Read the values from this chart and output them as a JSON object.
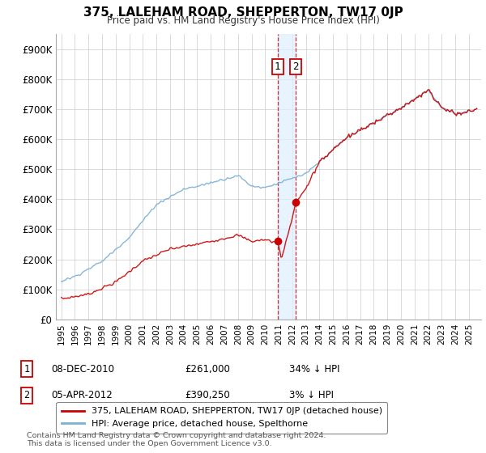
{
  "title": "375, LALEHAM ROAD, SHEPPERTON, TW17 0JP",
  "subtitle": "Price paid vs. HM Land Registry's House Price Index (HPI)",
  "legend_line1": "375, LALEHAM ROAD, SHEPPERTON, TW17 0JP (detached house)",
  "legend_line2": "HPI: Average price, detached house, Spelthorne",
  "annotation1_label": "1",
  "annotation1_date": "08-DEC-2010",
  "annotation1_price": "£261,000",
  "annotation1_hpi": "34% ↓ HPI",
  "annotation2_label": "2",
  "annotation2_date": "05-APR-2012",
  "annotation2_price": "£390,250",
  "annotation2_hpi": "3% ↓ HPI",
  "footnote": "Contains HM Land Registry data © Crown copyright and database right 2024.\nThis data is licensed under the Open Government Licence v3.0.",
  "hpi_color": "#7ab0d4",
  "price_color": "#cc0000",
  "vline_color": "#cc0000",
  "vband_color": "#ddeeff",
  "background_color": "#ffffff",
  "grid_color": "#cccccc",
  "ylim": [
    0,
    950000
  ],
  "yticks": [
    0,
    100000,
    200000,
    300000,
    400000,
    500000,
    600000,
    700000,
    800000,
    900000
  ],
  "ytick_labels": [
    "£0",
    "£100K",
    "£200K",
    "£300K",
    "£400K",
    "£500K",
    "£600K",
    "£700K",
    "£800K",
    "£900K"
  ],
  "transaction1_x": 2010.917,
  "transaction1_y": 261000,
  "transaction2_x": 2012.25,
  "transaction2_y": 390250,
  "xlim_left": 1994.6,
  "xlim_right": 2025.9
}
